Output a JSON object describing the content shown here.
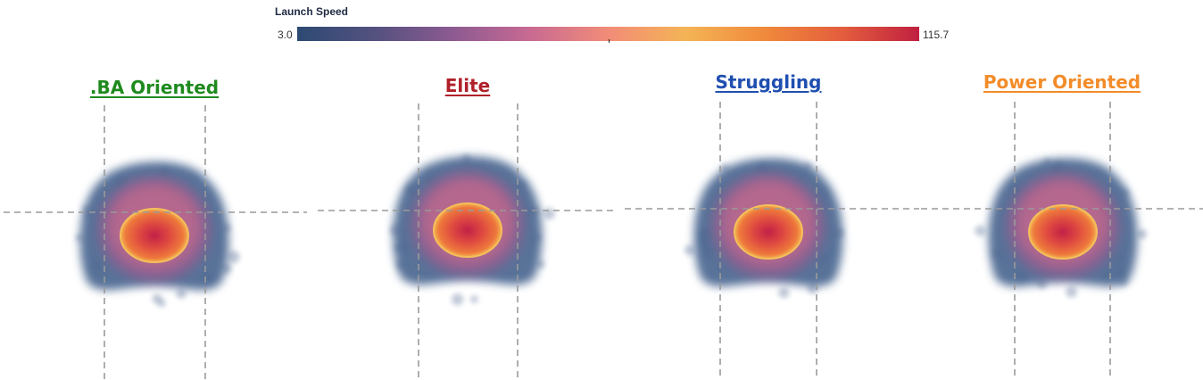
{
  "legend": {
    "title": "Launch Speed",
    "min_label": "3.0",
    "max_label": "115.7",
    "colors": [
      "#2d4a73",
      "#54517f",
      "#8c5a91",
      "#c86a92",
      "#f28c78",
      "#f4b455",
      "#f08a3c",
      "#e45e3d",
      "#c02040"
    ]
  },
  "chart_data": {
    "type": "heatmap",
    "value_name": "Launch Speed",
    "color_range": [
      3.0,
      115.7
    ],
    "panels": [
      {
        "title": ".BA Oriented",
        "color": "#1e8a1e"
      },
      {
        "title": "Elite",
        "color": "#b0202a"
      },
      {
        "title": "Struggling",
        "color": "#1f4fb0"
      },
      {
        "title": "Power Oriented",
        "color": "#f28c2a"
      }
    ],
    "reference_lines": "dashed strike-zone boundaries (two vertical, one horizontal) per panel"
  }
}
